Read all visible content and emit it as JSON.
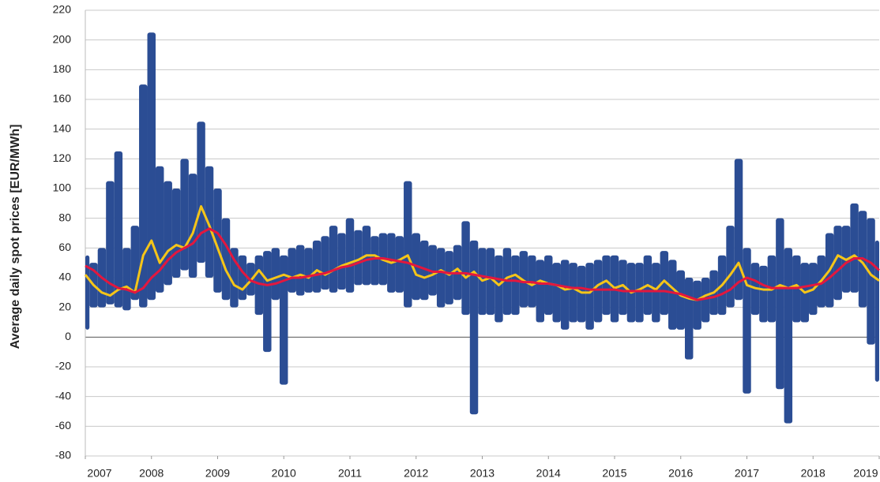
{
  "chart_data": {
    "type": "line",
    "y_label": "Average daily spot prices [EUR/MWh]",
    "xlim": [
      2007,
      2019
    ],
    "xticks": [
      2007,
      2008,
      2009,
      2010,
      2011,
      2012,
      2013,
      2014,
      2015,
      2016,
      2017,
      2018,
      2019
    ],
    "ylim": [
      -80,
      220
    ],
    "yticks": [
      -80,
      -60,
      -40,
      -20,
      0,
      20,
      40,
      60,
      80,
      100,
      120,
      140,
      160,
      180,
      200,
      220
    ],
    "grid": true,
    "x": [
      2007,
      2007.125,
      2007.25,
      2007.375,
      2007.5,
      2007.625,
      2007.75,
      2007.875,
      2008,
      2008.125,
      2008.25,
      2008.375,
      2008.5,
      2008.625,
      2008.75,
      2008.875,
      2009,
      2009.125,
      2009.25,
      2009.375,
      2009.5,
      2009.625,
      2009.75,
      2009.875,
      2010,
      2010.125,
      2010.25,
      2010.375,
      2010.5,
      2010.625,
      2010.75,
      2010.875,
      2011,
      2011.125,
      2011.25,
      2011.375,
      2011.5,
      2011.625,
      2011.75,
      2011.875,
      2012,
      2012.125,
      2012.25,
      2012.375,
      2012.5,
      2012.625,
      2012.75,
      2012.875,
      2013,
      2013.125,
      2013.25,
      2013.375,
      2013.5,
      2013.625,
      2013.75,
      2013.875,
      2014,
      2014.125,
      2014.25,
      2014.375,
      2014.5,
      2014.625,
      2014.75,
      2014.875,
      2015,
      2015.125,
      2015.25,
      2015.375,
      2015.5,
      2015.625,
      2015.75,
      2015.875,
      2016,
      2016.125,
      2016.25,
      2016.375,
      2016.5,
      2016.625,
      2016.75,
      2016.875,
      2017,
      2017.125,
      2017.25,
      2017.375,
      2017.5,
      2017.625,
      2017.75,
      2017.875,
      2018,
      2018.125,
      2018.25,
      2018.375,
      2018.5,
      2018.625,
      2018.75,
      2018.875,
      2019
    ],
    "band": {
      "color": "#2b4d94",
      "high": [
        55,
        50,
        60,
        105,
        125,
        60,
        75,
        170,
        205,
        115,
        105,
        100,
        120,
        110,
        145,
        115,
        100,
        80,
        60,
        55,
        50,
        55,
        58,
        60,
        55,
        60,
        62,
        60,
        65,
        68,
        75,
        70,
        80,
        72,
        75,
        68,
        70,
        70,
        68,
        105,
        70,
        65,
        62,
        60,
        58,
        62,
        78,
        65,
        60,
        60,
        55,
        60,
        55,
        58,
        55,
        52,
        55,
        50,
        52,
        50,
        48,
        50,
        52,
        55,
        55,
        52,
        50,
        50,
        55,
        50,
        58,
        52,
        45,
        40,
        38,
        40,
        45,
        55,
        75,
        120,
        60,
        50,
        48,
        55,
        80,
        60,
        55,
        50,
        50,
        55,
        70,
        75,
        75,
        90,
        85,
        80,
        65
      ],
      "low": [
        5,
        20,
        20,
        22,
        20,
        18,
        25,
        20,
        25,
        30,
        35,
        40,
        45,
        40,
        50,
        40,
        30,
        25,
        20,
        25,
        28,
        15,
        -10,
        25,
        -32,
        30,
        28,
        30,
        30,
        32,
        30,
        32,
        30,
        35,
        35,
        35,
        35,
        30,
        30,
        20,
        25,
        25,
        28,
        20,
        22,
        25,
        15,
        -52,
        15,
        15,
        10,
        15,
        15,
        20,
        20,
        10,
        15,
        10,
        5,
        10,
        10,
        5,
        10,
        15,
        10,
        15,
        10,
        10,
        15,
        10,
        15,
        5,
        5,
        -15,
        5,
        10,
        15,
        15,
        20,
        25,
        -38,
        15,
        10,
        10,
        -35,
        -58,
        10,
        10,
        15,
        20,
        20,
        25,
        30,
        30,
        20,
        -5,
        -30
      ]
    },
    "series": [
      {
        "color": "#f5c518",
        "values": [
          42,
          35,
          30,
          28,
          32,
          34,
          30,
          55,
          65,
          50,
          58,
          62,
          60,
          70,
          88,
          75,
          60,
          45,
          35,
          32,
          38,
          45,
          38,
          40,
          42,
          40,
          42,
          40,
          45,
          42,
          45,
          48,
          50,
          52,
          55,
          55,
          52,
          50,
          52,
          55,
          42,
          40,
          42,
          45,
          42,
          46,
          40,
          44,
          38,
          40,
          35,
          40,
          42,
          38,
          35,
          38,
          36,
          35,
          32,
          33,
          30,
          30,
          35,
          38,
          33,
          35,
          30,
          32,
          35,
          32,
          38,
          33,
          28,
          26,
          25,
          28,
          30,
          35,
          42,
          50,
          35,
          33,
          32,
          32,
          35,
          33,
          35,
          30,
          32,
          38,
          45,
          55,
          52,
          55,
          50,
          42,
          38
        ]
      },
      {
        "color": "#e3173e",
        "values": [
          48,
          45,
          40,
          36,
          33,
          32,
          30,
          33,
          40,
          45,
          52,
          57,
          60,
          63,
          70,
          73,
          70,
          62,
          52,
          44,
          38,
          36,
          35,
          36,
          38,
          40,
          40,
          41,
          42,
          43,
          45,
          47,
          48,
          50,
          52,
          53,
          53,
          52,
          51,
          50,
          48,
          46,
          44,
          44,
          43,
          43,
          43,
          42,
          41,
          40,
          39,
          38,
          38,
          37,
          37,
          36,
          36,
          35,
          34,
          33,
          33,
          32,
          32,
          32,
          32,
          31,
          31,
          31,
          31,
          31,
          31,
          30,
          29,
          27,
          25,
          26,
          27,
          29,
          32,
          37,
          40,
          38,
          35,
          33,
          33,
          33,
          33,
          34,
          35,
          36,
          40,
          45,
          50,
          53,
          53,
          50,
          45
        ]
      }
    ]
  }
}
